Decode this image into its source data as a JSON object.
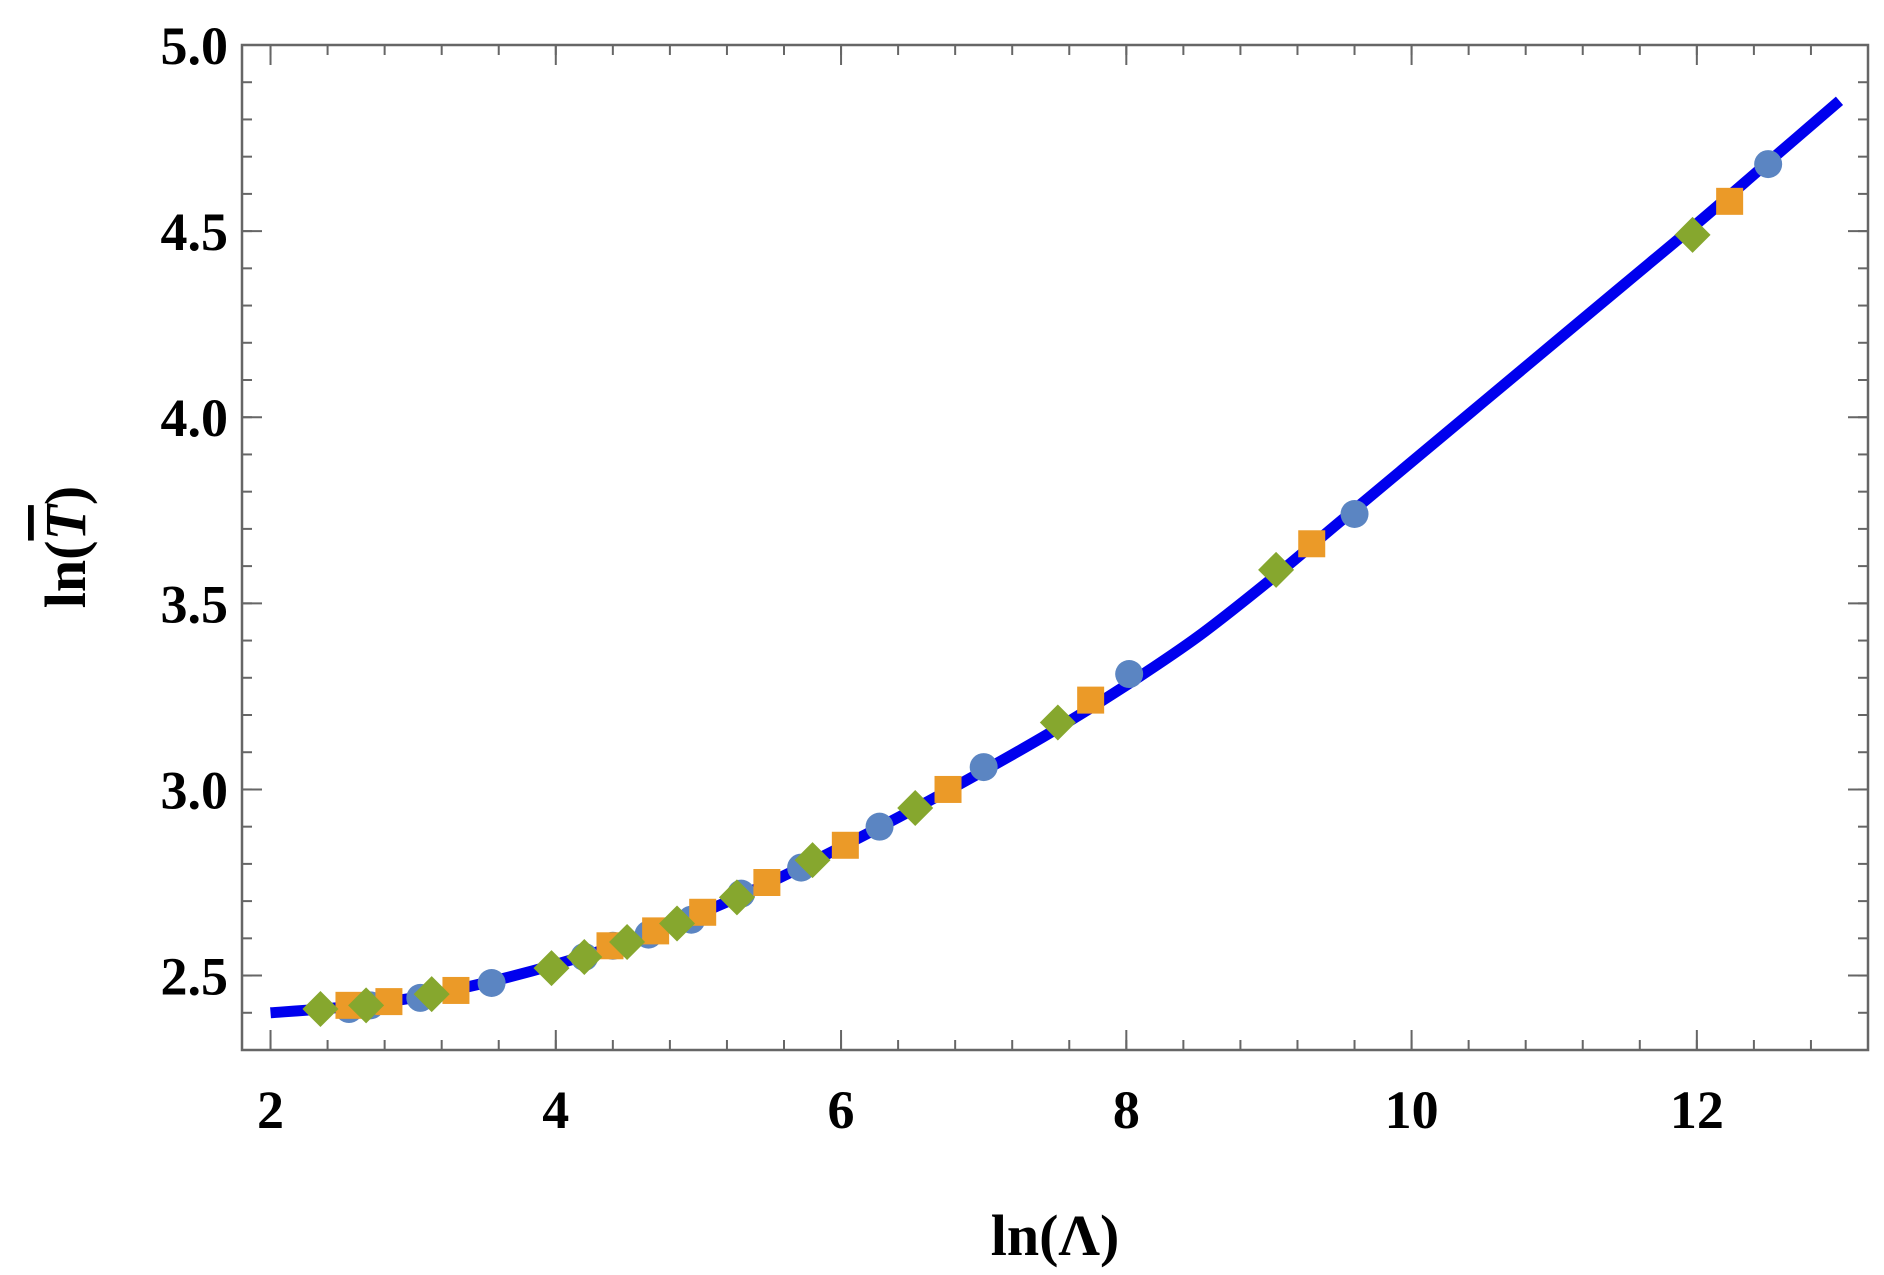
{
  "chart_data": {
    "type": "scatter",
    "xlabel": "ln(Λ)",
    "ylabel": "ln(T)",
    "ylabel_parts": {
      "prefix": "ln(",
      "symbol": "T",
      "suffix": ")"
    },
    "xlim": [
      1.8,
      13.2
    ],
    "ylim": [
      2.3,
      5.0
    ],
    "x_ticks": [
      {
        "value": 2,
        "label": "2"
      },
      {
        "value": 4,
        "label": "4"
      },
      {
        "value": 6,
        "label": "6"
      },
      {
        "value": 8,
        "label": "8"
      },
      {
        "value": 10,
        "label": "10"
      },
      {
        "value": 12,
        "label": "12"
      }
    ],
    "y_ticks": [
      {
        "value": 2.5,
        "label": "2.5"
      },
      {
        "value": 3.0,
        "label": "3.0"
      },
      {
        "value": 3.5,
        "label": "3.5"
      },
      {
        "value": 4.0,
        "label": "4.0"
      },
      {
        "value": 4.5,
        "label": "4.5"
      },
      {
        "value": 5.0,
        "label": "5.0"
      }
    ],
    "x_minor_step": 0.4,
    "y_minor_step": 0.1,
    "grid": false,
    "line": {
      "color": "#0000ee",
      "x": [
        2.0,
        2.5,
        3.0,
        3.5,
        4.0,
        4.5,
        5.0,
        5.5,
        6.0,
        6.5,
        7.0,
        7.5,
        8.0,
        8.5,
        9.0,
        9.5,
        10.0,
        10.5,
        11.0,
        11.5,
        12.0,
        12.5,
        13.0
      ],
      "y": [
        2.4,
        2.415,
        2.44,
        2.48,
        2.53,
        2.59,
        2.665,
        2.75,
        2.845,
        2.945,
        3.05,
        3.16,
        3.28,
        3.41,
        3.56,
        3.72,
        3.88,
        4.04,
        4.2,
        4.36,
        4.52,
        4.685,
        4.85
      ]
    },
    "series": [
      {
        "color": "#5b85c2",
        "marker": "circle",
        "x": [
          2.55,
          2.7,
          3.05,
          3.55,
          4.2,
          4.4,
          4.65,
          4.95,
          5.3,
          5.72,
          6.27,
          7.0,
          8.02,
          9.6,
          12.5
        ],
        "y": [
          2.41,
          2.42,
          2.44,
          2.48,
          2.55,
          2.58,
          2.61,
          2.65,
          2.72,
          2.79,
          2.9,
          3.06,
          3.31,
          3.74,
          4.68
        ]
      },
      {
        "color": "#eb9a28",
        "marker": "square",
        "x": [
          2.55,
          2.83,
          3.3,
          4.38,
          4.7,
          5.03,
          5.48,
          6.03,
          6.75,
          7.75,
          9.3,
          12.23
        ],
        "y": [
          2.42,
          2.43,
          2.46,
          2.58,
          2.62,
          2.67,
          2.75,
          2.85,
          3.0,
          3.24,
          3.66,
          4.58
        ]
      },
      {
        "color": "#86a72e",
        "marker": "diamond",
        "x": [
          2.35,
          2.67,
          3.13,
          3.97,
          4.2,
          4.5,
          4.85,
          5.27,
          5.8,
          6.52,
          7.52,
          9.05,
          11.97
        ],
        "y": [
          2.41,
          2.42,
          2.45,
          2.52,
          2.55,
          2.59,
          2.64,
          2.71,
          2.81,
          2.95,
          3.18,
          3.59,
          4.49
        ]
      }
    ]
  }
}
